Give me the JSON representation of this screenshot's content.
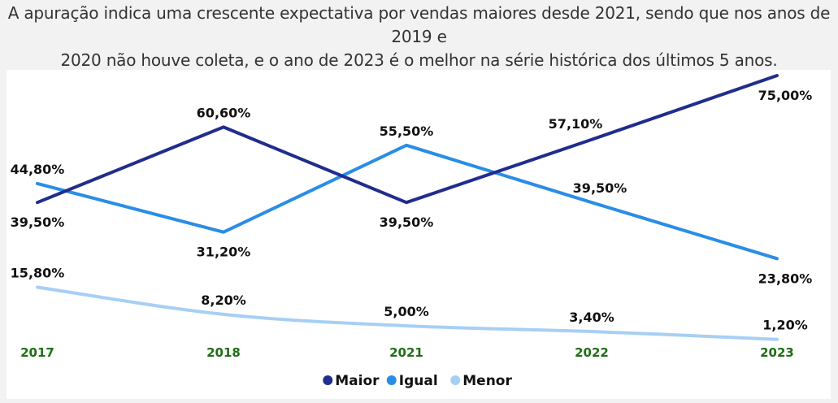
{
  "caption": {
    "line1": "A apuração indica uma crescente expectativa por vendas maiores desde 2021, sendo que nos anos de 2019 e",
    "line2": "2020 não houve coleta, e o ano de 2023 é o melhor na série histórica dos últimos 5 anos."
  },
  "chart_data": {
    "type": "line",
    "categories": [
      "2017",
      "2018",
      "2021",
      "2022",
      "2023"
    ],
    "ylim": [
      0,
      80
    ],
    "grid": false,
    "legend_position": "bottom-center",
    "xtick_color": "#1e6e14",
    "series": [
      {
        "name": "Maior",
        "color": "#1f2d8c",
        "values": [
          39.5,
          60.6,
          39.5,
          57.1,
          75.0
        ],
        "labels": [
          "39,50%",
          "60,60%",
          "39,50%",
          "57,10%",
          "75,00%"
        ]
      },
      {
        "name": "Igual",
        "color": "#2a8de6",
        "values": [
          44.8,
          31.2,
          55.5,
          39.5,
          23.8
        ],
        "labels": [
          "44,80%",
          "31,20%",
          "55,50%",
          "39,50%",
          "23,80%"
        ]
      },
      {
        "name": "Menor",
        "color": "#a7cff5",
        "values": [
          15.8,
          8.2,
          5.0,
          3.4,
          1.2
        ],
        "labels": [
          "15,80%",
          "8,20%",
          "5,00%",
          "3,40%",
          "1,20%"
        ]
      }
    ]
  }
}
